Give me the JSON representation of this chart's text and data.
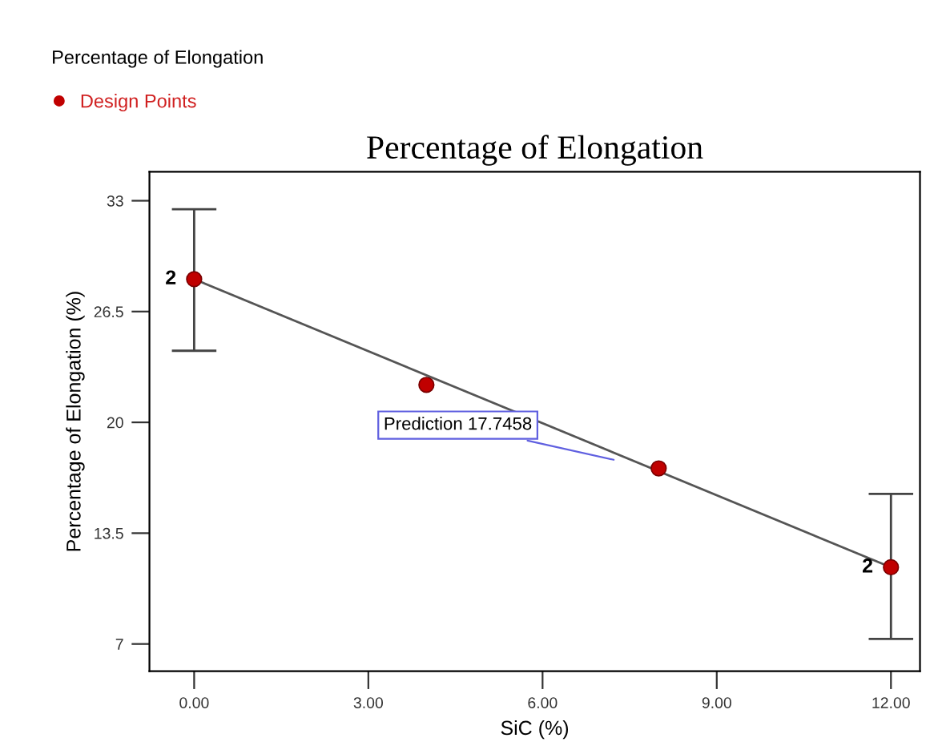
{
  "chart_data": {
    "type": "scatter",
    "title": "Percentage of Elongation",
    "subtitle": "Percentage of Elongation",
    "xlabel": "SiC (%)",
    "ylabel": "Percentage of Elongation (%)",
    "series": [
      {
        "name": "Design Points",
        "color": "#c00000",
        "x": [
          0,
          4,
          8,
          12
        ],
        "values": [
          28.4,
          22.2,
          17.3,
          11.5
        ],
        "errors": [
          [
            24.2,
            32.5
          ],
          null,
          null,
          [
            7.3,
            15.8
          ]
        ],
        "marker": "circle"
      },
      {
        "type": "line",
        "color": "#555555",
        "x": [
          0,
          12
        ],
        "values": [
          28.4,
          11.5
        ],
        "marker": "none",
        "line_style": "solid"
      }
    ],
    "annotations": [
      {
        "text": "Prediction 17.7458",
        "x": 7.3,
        "y": 17.75
      },
      {
        "text": "2",
        "x": 0,
        "y": 28.4
      },
      {
        "text": "2",
        "x": 12,
        "y": 11.5
      }
    ],
    "xlim": [
      -0.77,
      12.5
    ],
    "ylim": [
      5.4,
      34.7
    ],
    "xticks": [
      {
        "value": 0,
        "label": "0.00"
      },
      {
        "value": 3,
        "label": "3.00"
      },
      {
        "value": 6,
        "label": "6.00"
      },
      {
        "value": 9,
        "label": "9.00"
      },
      {
        "value": 12,
        "label": "12.00"
      }
    ],
    "yticks": [
      33,
      26.5,
      20,
      13.5,
      7
    ],
    "grid": false,
    "legend": "top left"
  }
}
